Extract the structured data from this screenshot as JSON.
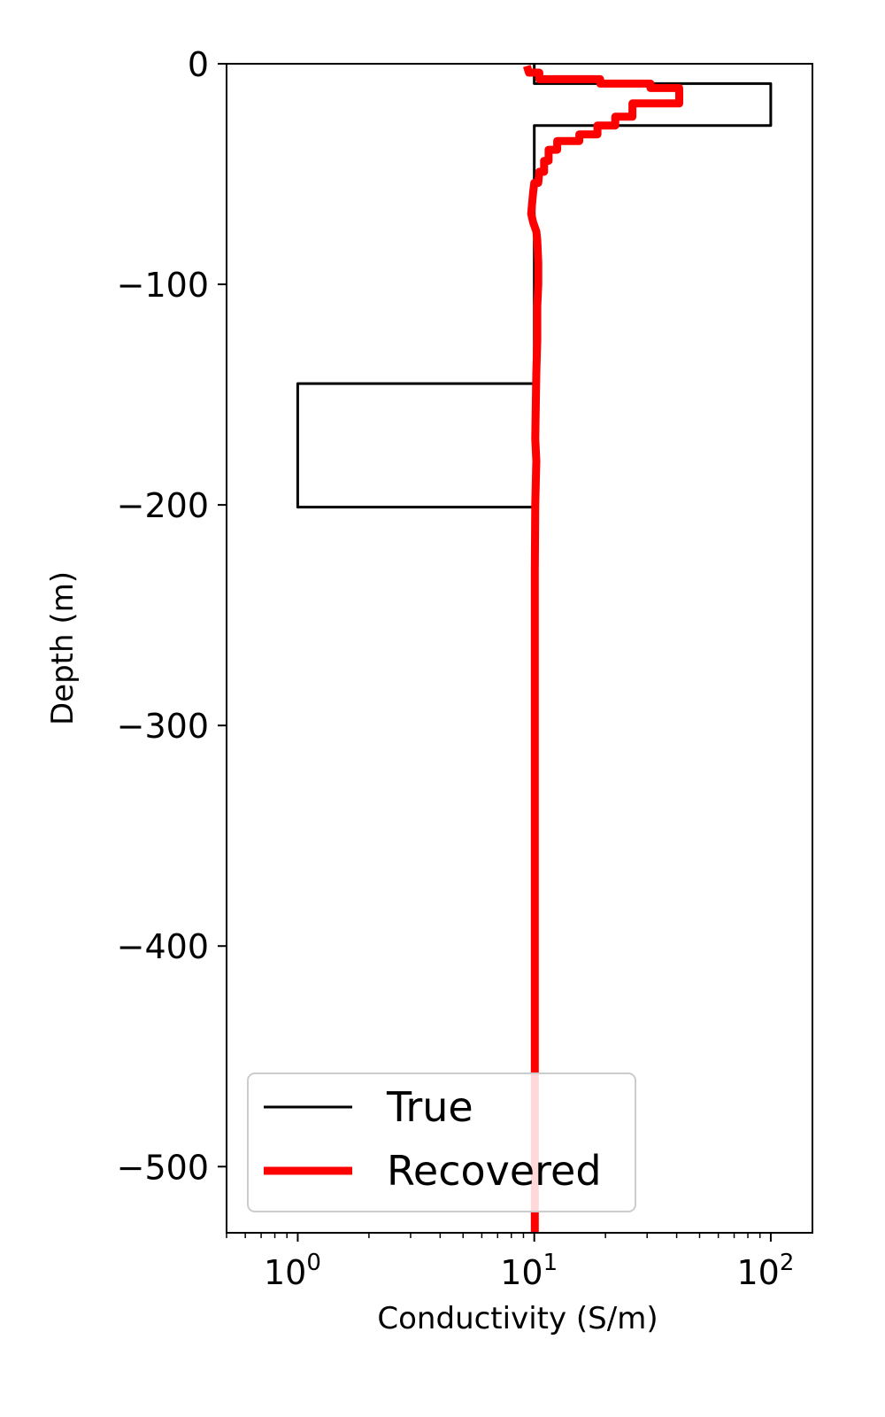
{
  "chart_data": {
    "type": "line",
    "title": "",
    "xlabel": "Conductivity (S/m)",
    "ylabel": "Depth (m)",
    "x_scale": "log",
    "xlim": [
      0.5,
      150
    ],
    "ylim": [
      -530,
      0
    ],
    "x_ticks": [
      {
        "value": 1,
        "base": "10",
        "exp": "0"
      },
      {
        "value": 10,
        "base": "10",
        "exp": "1"
      },
      {
        "value": 100,
        "base": "10",
        "exp": "2"
      }
    ],
    "y_ticks": [
      {
        "value": 0,
        "label": "0"
      },
      {
        "value": -100,
        "label": "−100"
      },
      {
        "value": -200,
        "label": "−200"
      },
      {
        "value": -300,
        "label": "−300"
      },
      {
        "value": -400,
        "label": "−400"
      },
      {
        "value": -500,
        "label": "−500"
      }
    ],
    "grid": false,
    "legend_position": "bottom-left",
    "series": [
      {
        "name": "True",
        "color": "#000000",
        "points": [
          [
            10,
            0
          ],
          [
            10,
            -9
          ],
          [
            100,
            -9
          ],
          [
            100,
            -28
          ],
          [
            10,
            -28
          ],
          [
            10,
            -145
          ],
          [
            1,
            -145
          ],
          [
            1,
            -201
          ],
          [
            10,
            -201
          ],
          [
            10,
            -530
          ]
        ]
      },
      {
        "name": "Recovered",
        "color": "#ff0000",
        "points": [
          [
            9.3,
            -1
          ],
          [
            9.5,
            -4
          ],
          [
            10.5,
            -4
          ],
          [
            10.5,
            -7
          ],
          [
            19,
            -7
          ],
          [
            19,
            -9
          ],
          [
            31,
            -9
          ],
          [
            31,
            -11
          ],
          [
            41,
            -11
          ],
          [
            41,
            -18
          ],
          [
            26,
            -18
          ],
          [
            26,
            -24
          ],
          [
            22,
            -24
          ],
          [
            22,
            -28
          ],
          [
            18.5,
            -28
          ],
          [
            18.5,
            -32
          ],
          [
            15.5,
            -32
          ],
          [
            15.5,
            -35
          ],
          [
            12.5,
            -35
          ],
          [
            12.5,
            -39
          ],
          [
            11.5,
            -39
          ],
          [
            11.5,
            -44
          ],
          [
            11,
            -44
          ],
          [
            11,
            -49
          ],
          [
            10.5,
            -49
          ],
          [
            10.4,
            -54
          ],
          [
            10,
            -54
          ],
          [
            9.9,
            -58
          ],
          [
            9.8,
            -63
          ],
          [
            9.7,
            -68
          ],
          [
            9.9,
            -72
          ],
          [
            10.2,
            -76
          ],
          [
            10.3,
            -80
          ],
          [
            10.4,
            -90
          ],
          [
            10.4,
            -100
          ],
          [
            10.3,
            -110
          ],
          [
            10.3,
            -125
          ],
          [
            10.2,
            -140
          ],
          [
            10.15,
            -155
          ],
          [
            10.1,
            -170
          ],
          [
            10.2,
            -180
          ],
          [
            10.1,
            -200
          ],
          [
            10.05,
            -230
          ],
          [
            10.05,
            -300
          ],
          [
            10.05,
            -400
          ],
          [
            10.05,
            -530
          ]
        ]
      }
    ]
  }
}
